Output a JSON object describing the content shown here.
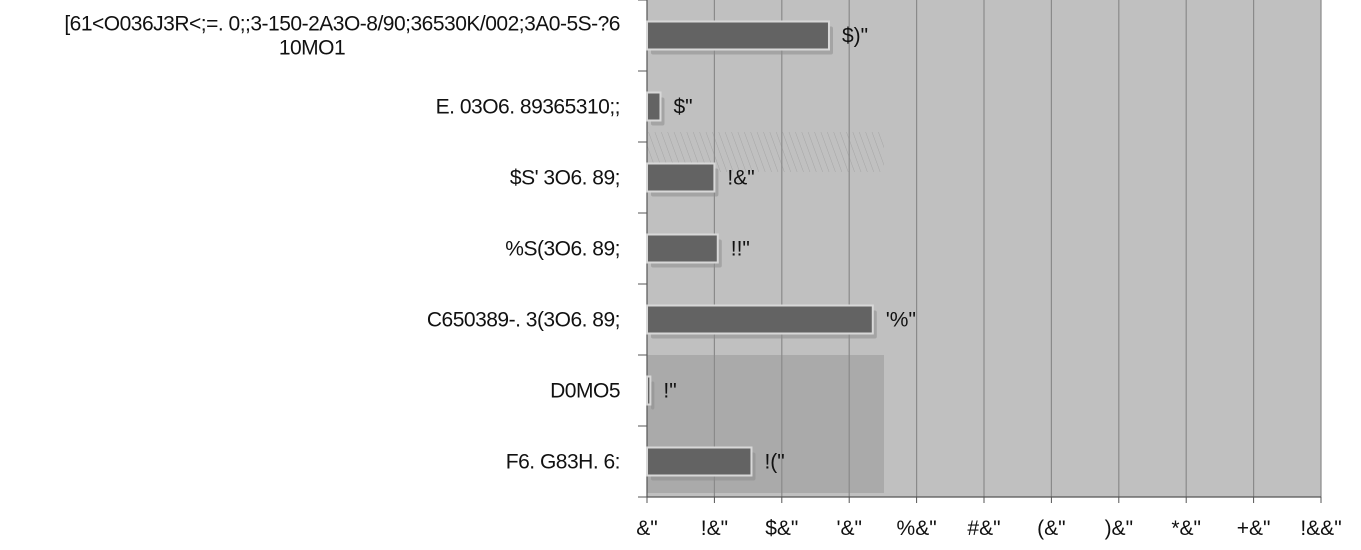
{
  "chart_data": {
    "type": "bar",
    "orientation": "horizontal",
    "categories": [
      "[61<O036J3R<;=. 0;;3-150-2A3O-8/90;36530K/002;3A0-5S-?6 10MO1",
      "E. 03O6. 89365310;;",
      "$S' 3O6. 89;",
      "%S(3O6. 89;",
      "C650389-. 3(3O6. 89;",
      "D0MO5",
      "F6. G83H. 6:"
    ],
    "category_lines": [
      [
        "[61<O036J3R<;=. 0;;3-150-2A3O-8/90;36530K/002;3A0-5S-?6",
        "10MO1"
      ],
      [
        "E. 03O6. 89365310;;"
      ],
      [
        "$S' 3O6. 89;"
      ],
      [
        "%S(3O6. 89;"
      ],
      [
        "C650389-. 3(3O6. 89;"
      ],
      [
        "D0MO5"
      ],
      [
        "F6. G83H. 6:"
      ]
    ],
    "values": [
      27,
      2,
      10,
      10.5,
      33.5,
      0.5,
      15.5
    ],
    "data_labels": [
      "$)\"",
      "$\"",
      "!&\"",
      "!!\"",
      "'%\"",
      "!\"",
      "!(\""
    ],
    "x_tick_labels": [
      "&\"",
      "!&\"",
      "$&\"",
      "'&\"",
      "%&\"",
      "#&\"",
      "(&\"",
      ")&\"",
      "*&\"",
      "+&\"",
      "!&&\""
    ],
    "xlim": [
      0,
      100
    ],
    "grid": true,
    "colors": {
      "plot_background": "#c0c0c0",
      "bar_fill": "#636363",
      "bar_border": "#d8d8d8",
      "gridline": "#8a8a8a",
      "axis": "#555555",
      "inset_panel": "#aaaaaa"
    }
  }
}
